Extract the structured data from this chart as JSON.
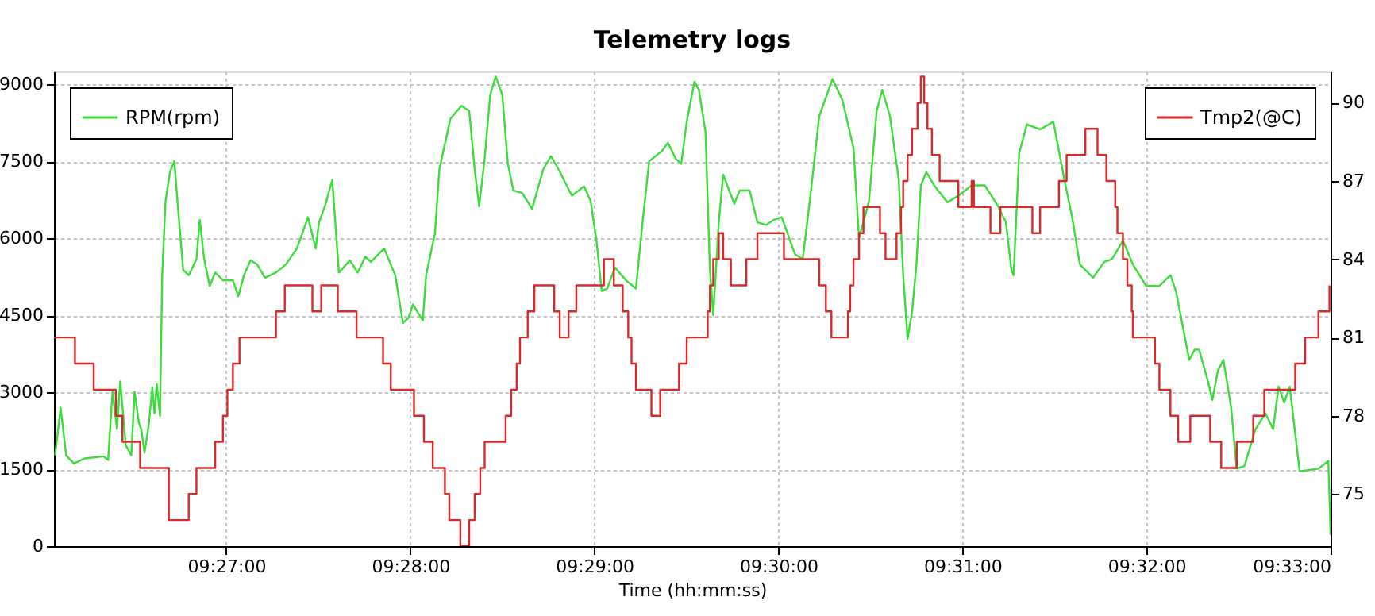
{
  "chart_data": {
    "type": "line",
    "title": "Telemetry logs",
    "xlabel": "Time (hh:mm:ss)",
    "xlim": [
      9.4344,
      9.55
    ],
    "xticks": [
      {
        "value": 9.45,
        "label": "09:27:00"
      },
      {
        "value": 9.466667,
        "label": "09:28:00"
      },
      {
        "value": 9.483333,
        "label": "09:29:00"
      },
      {
        "value": 9.5,
        "label": "09:30:00"
      },
      {
        "value": 9.516667,
        "label": "09:31:00"
      },
      {
        "value": 9.533333,
        "label": "09:32:00"
      },
      {
        "value": 9.55,
        "label": "09:33:00"
      }
    ],
    "ylim": [
      0,
      9250
    ],
    "yticks": [
      0,
      1500,
      3000,
      4500,
      6000,
      7500,
      9000
    ],
    "y2lim": [
      73,
      91.2
    ],
    "y2ticks": [
      75,
      78,
      81,
      84,
      87,
      90
    ],
    "grid": true,
    "legend": "top left",
    "series": [
      {
        "name": "RPM(rpm)",
        "color": "#3cdc3c",
        "x": [
          9.4345,
          9.435,
          9.4355,
          9.4362,
          9.4372,
          9.4389,
          9.4393,
          9.4397,
          9.4401,
          9.4404,
          9.4409,
          9.4414,
          9.4417,
          9.4421,
          9.4423,
          9.4426,
          9.443,
          9.4433,
          9.4435,
          9.4437,
          9.444,
          9.4442,
          9.4445,
          9.4449,
          9.4453,
          9.4457,
          9.4461,
          9.4466,
          9.4473,
          9.4476,
          9.448,
          9.4485,
          9.449,
          9.4497,
          9.4506,
          9.4511,
          9.4516,
          9.4522,
          9.4528,
          9.4535,
          9.4545,
          9.4554,
          9.4564,
          9.4574,
          9.4581,
          9.4584,
          9.459,
          9.4596,
          9.4602,
          9.4612,
          9.4619,
          9.4626,
          9.4631,
          9.4643,
          9.4653,
          9.466,
          9.4665,
          9.4669,
          9.4678,
          9.4681,
          9.4689,
          9.4693,
          9.4703,
          9.4713,
          9.472,
          9.4725,
          9.4729,
          9.4734,
          9.4739,
          9.4744,
          9.475,
          9.4755,
          9.476,
          9.4768,
          9.4777,
          9.4787,
          9.4794,
          9.4801,
          9.4813,
          9.4824,
          9.483,
          9.4835,
          9.484,
          9.4845,
          9.4852,
          9.4862,
          9.4871,
          9.4877,
          9.4883,
          9.4895,
          9.49,
          9.4907,
          9.4912,
          9.4917,
          9.4924,
          9.4928,
          9.4934,
          9.4938,
          9.4941,
          9.4946,
          9.495,
          9.496,
          9.4965,
          9.4974,
          9.4981,
          9.4989,
          9.4996,
          9.5003,
          9.5015,
          9.5022,
          9.5029,
          9.5037,
          9.5049,
          9.5058,
          9.5068,
          9.5073,
          9.5082,
          9.5089,
          9.5094,
          9.5101,
          9.5109,
          9.5113,
          9.5117,
          9.5121,
          9.5125,
          9.5129,
          9.5134,
          9.5141,
          9.5153,
          9.5163,
          9.5175,
          9.5187,
          9.5199,
          9.5206,
          9.5211,
          9.5213,
          9.5218,
          9.5225,
          9.5237,
          9.5249,
          9.5259,
          9.5266,
          9.5273,
          9.5285,
          9.5295,
          9.5302,
          9.5312,
          9.5321,
          9.5333,
          9.5345,
          9.5355,
          9.536,
          9.5372,
          9.5377,
          9.5381,
          9.5389,
          9.5393,
          9.5398,
          9.5403,
          9.541,
          9.5415,
          9.5422,
          9.5432,
          9.5441,
          9.5448,
          9.5453,
          9.5458,
          9.5463,
          9.5472,
          9.5489,
          9.5498,
          9.55
        ],
        "values": [
          1770,
          2700,
          1770,
          1610,
          1710,
          1750,
          1680,
          3010,
          2280,
          3210,
          1970,
          1770,
          3010,
          2390,
          2280,
          1820,
          2390,
          3090,
          2590,
          3160,
          2540,
          5280,
          6720,
          7290,
          7500,
          6410,
          5380,
          5280,
          5590,
          6360,
          5590,
          5070,
          5330,
          5180,
          5180,
          4870,
          5280,
          5570,
          5490,
          5230,
          5330,
          5490,
          5800,
          6410,
          5800,
          6310,
          6670,
          7140,
          5330,
          5570,
          5330,
          5640,
          5540,
          5800,
          5280,
          4350,
          4450,
          4710,
          4400,
          5280,
          6100,
          7340,
          8330,
          8580,
          8480,
          7340,
          6620,
          7550,
          8790,
          9150,
          8790,
          7450,
          6930,
          6880,
          6570,
          7340,
          7600,
          7340,
          6830,
          7010,
          6720,
          6000,
          4970,
          5020,
          5430,
          5180,
          5020,
          6310,
          7500,
          7710,
          7860,
          7550,
          7450,
          8270,
          9050,
          8890,
          8070,
          5380,
          4500,
          6310,
          7240,
          6670,
          6930,
          6930,
          6310,
          6260,
          6360,
          6410,
          5690,
          5590,
          6830,
          8380,
          9100,
          8690,
          7760,
          6000,
          6720,
          8480,
          8890,
          8380,
          7140,
          5280,
          4040,
          4560,
          5490,
          7030,
          7290,
          7030,
          6700,
          6830,
          7030,
          7030,
          6620,
          6310,
          5380,
          5280,
          7650,
          8220,
          8120,
          8270,
          7140,
          6410,
          5490,
          5230,
          5540,
          5590,
          5950,
          5490,
          5070,
          5070,
          5280,
          4970,
          3630,
          3830,
          3830,
          3210,
          2850,
          3420,
          3630,
          2700,
          1510,
          1560,
          2280,
          2590,
          2280,
          3110,
          2800,
          3110,
          1460,
          1510,
          1660,
          220
        ]
      },
      {
        "name": "Tmp2(@C)",
        "color": "#dc2828",
        "type": "step",
        "axis": "y2",
        "x": [
          9.4344,
          9.4363,
          9.438,
          9.44,
          9.4406,
          9.4422,
          9.4448,
          9.4466,
          9.4473,
          9.449,
          9.4497,
          9.4501,
          9.4506,
          9.4512,
          9.4545,
          9.4553,
          9.4578,
          9.4586,
          9.4601,
          9.4618,
          9.4642,
          9.4649,
          9.467,
          9.4679,
          9.4687,
          9.4698,
          9.4702,
          9.4712,
          9.472,
          9.4725,
          9.473,
          9.4734,
          9.4753,
          9.4758,
          9.4763,
          9.4766,
          9.4773,
          9.4779,
          9.4797,
          9.4802,
          9.481,
          9.4817,
          9.4842,
          9.4851,
          9.4859,
          9.4864,
          9.4867,
          9.4871,
          9.4885,
          9.4893,
          9.491,
          9.4917,
          9.4936,
          9.4938,
          9.4941,
          9.4946,
          9.495,
          9.4957,
          9.4971,
          9.4981,
          9.5005,
          9.5037,
          9.5043,
          9.5048,
          9.5063,
          9.5065,
          9.5068,
          9.5073,
          9.5077,
          9.5092,
          9.5097,
          9.5107,
          9.5111,
          9.5113,
          9.5117,
          9.5121,
          9.5126,
          9.5129,
          9.5132,
          9.5135,
          9.5139,
          9.5146,
          9.5163,
          9.5175,
          9.5177,
          9.5192,
          9.5201,
          9.523,
          9.5237,
          9.5254,
          9.5261,
          9.5278,
          9.5289,
          9.5297,
          9.5305,
          9.5307,
          9.5312,
          9.5316,
          9.532,
          9.5321,
          9.5341,
          9.5345,
          9.5355,
          9.5362,
          9.5373,
          9.5391,
          9.5401,
          9.5415,
          9.543,
          9.544,
          9.5468,
          9.5477,
          9.5489,
          9.5499
        ],
        "values": [
          81,
          80,
          79,
          78,
          77,
          76,
          74,
          75,
          76,
          77,
          78,
          79,
          80,
          81,
          82,
          83,
          82,
          83,
          82,
          81,
          80,
          79,
          78,
          77,
          76,
          75,
          74,
          73,
          74,
          75,
          76,
          77,
          78,
          79,
          80,
          81,
          82,
          83,
          82,
          81,
          82,
          83,
          84,
          83,
          82,
          81,
          80,
          79,
          78,
          79,
          80,
          81,
          82,
          83,
          84,
          85,
          84,
          83,
          84,
          85,
          84,
          83,
          82,
          81,
          82,
          83,
          84,
          85,
          86,
          85,
          84,
          85,
          86,
          87,
          88,
          89,
          90,
          91,
          90,
          89,
          88,
          87,
          86,
          87,
          86,
          85,
          86,
          85,
          86,
          87,
          88,
          89,
          88,
          87,
          86,
          85,
          84,
          83,
          82,
          81,
          80,
          79,
          78,
          77,
          78,
          77,
          76,
          77,
          78,
          79,
          80,
          81,
          82,
          83
        ]
      }
    ]
  }
}
